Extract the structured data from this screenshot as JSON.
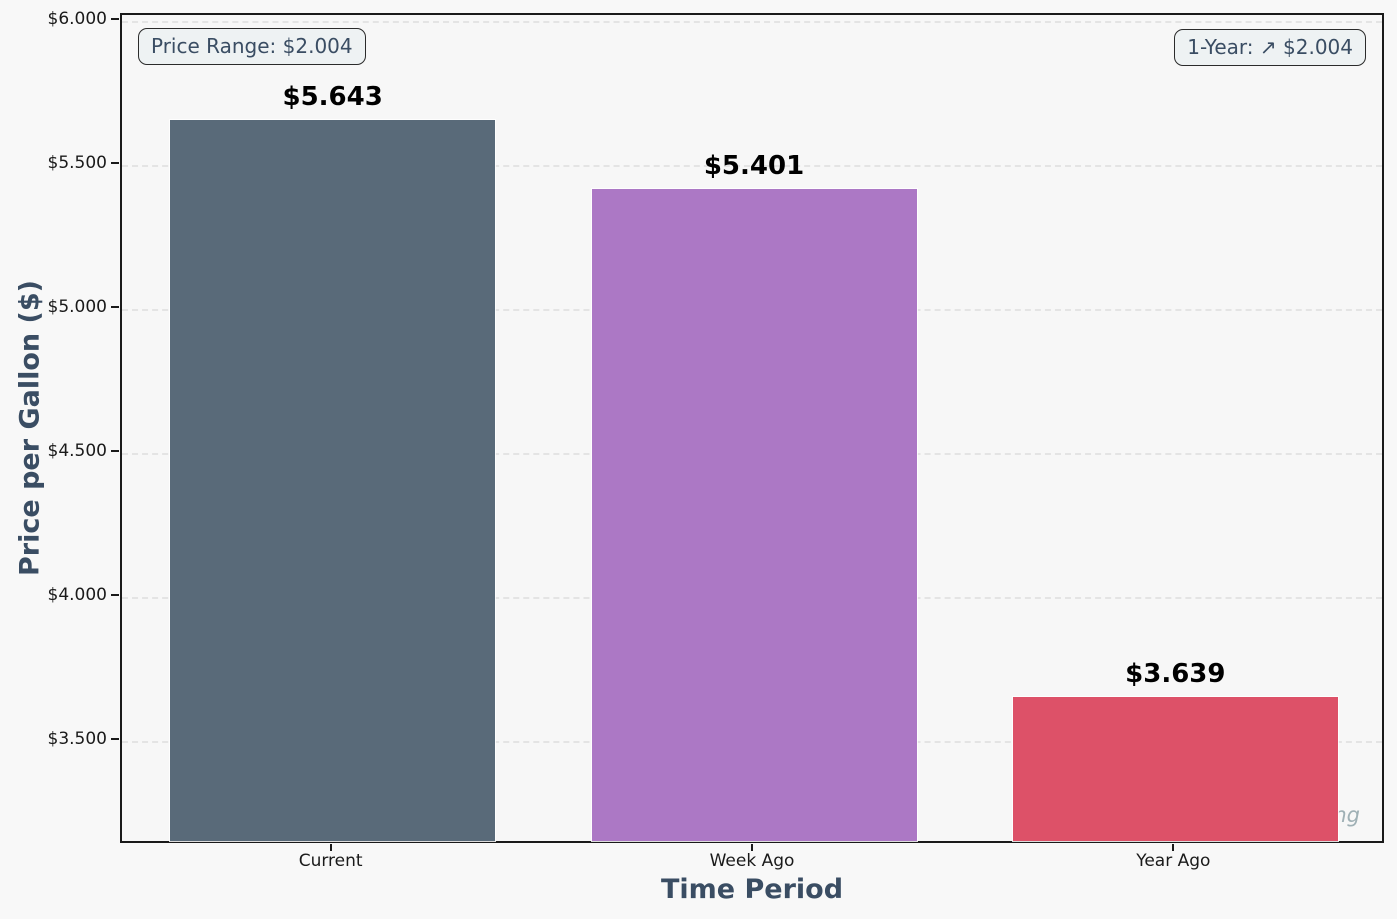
{
  "chart_data": {
    "type": "bar",
    "categories": [
      "Current",
      "Week Ago",
      "Year Ago"
    ],
    "values": [
      5.643,
      5.401,
      3.639
    ],
    "value_labels": [
      "$5.643",
      "$5.401",
      "$3.639"
    ],
    "bar_colors": [
      "#596a79",
      "#ac78c5",
      "#dd5168"
    ],
    "title": "",
    "xlabel": "Time Period",
    "ylabel": "Price per Gallon ($)",
    "ylim": [
      3.14,
      6.02
    ],
    "yticks": [
      3.5,
      4.0,
      4.5,
      5.0,
      5.5,
      6.0
    ],
    "ytick_labels": [
      "$3.500",
      "$4.000",
      "$4.500",
      "$5.000",
      "$5.500",
      "$6.000"
    ],
    "grid": "horizontal-dashed",
    "legend": "none",
    "annotations": {
      "price_range": "Price Range: $2.004",
      "one_year": "1-Year: ↗ $2.004",
      "data_source": "Data Source: AAA diesel pricing"
    }
  },
  "colors": {
    "figure_background": "#f8f8f8",
    "plot_background": "#f7f7f7",
    "spine": "#1a1a1a",
    "grid": "#e4e4e4",
    "axis_title_text": "#3a4d63",
    "tick_text": "#1a1a1a",
    "annotation_text": "#3a4d63",
    "annotation_background": "#eef2f3",
    "annotation_border": "#2b2b2b",
    "data_source_text": "#9fb0b5"
  }
}
